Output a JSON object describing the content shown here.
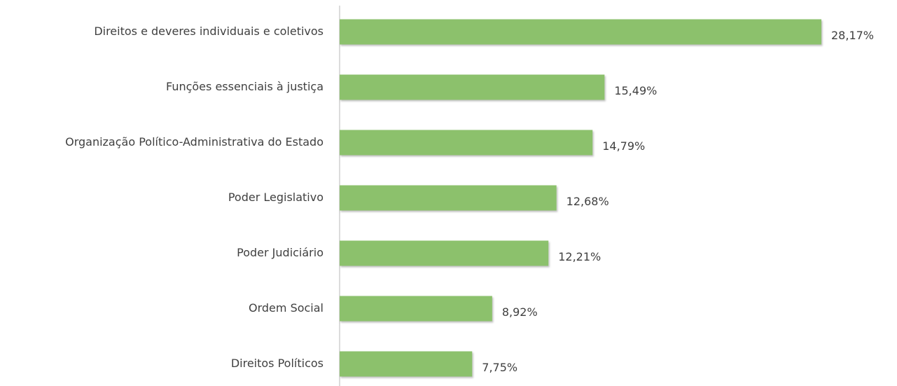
{
  "chart_data": {
    "type": "bar",
    "orientation": "horizontal",
    "categories": [
      "Direitos e deveres individuais e coletivos",
      "Funções essenciais à justiça",
      "Organização Político-Administrativa do Estado",
      "Poder Legislativo",
      "Poder Judiciário",
      "Ordem Social",
      "Direitos Políticos"
    ],
    "values": [
      28.17,
      15.49,
      14.79,
      12.68,
      12.21,
      8.92,
      7.75
    ],
    "value_labels": [
      "28,17%",
      "15,49%",
      "14,79%",
      "12,68%",
      "12,21%",
      "8,92%",
      "7,75%"
    ],
    "color": "#8cc16c"
  }
}
